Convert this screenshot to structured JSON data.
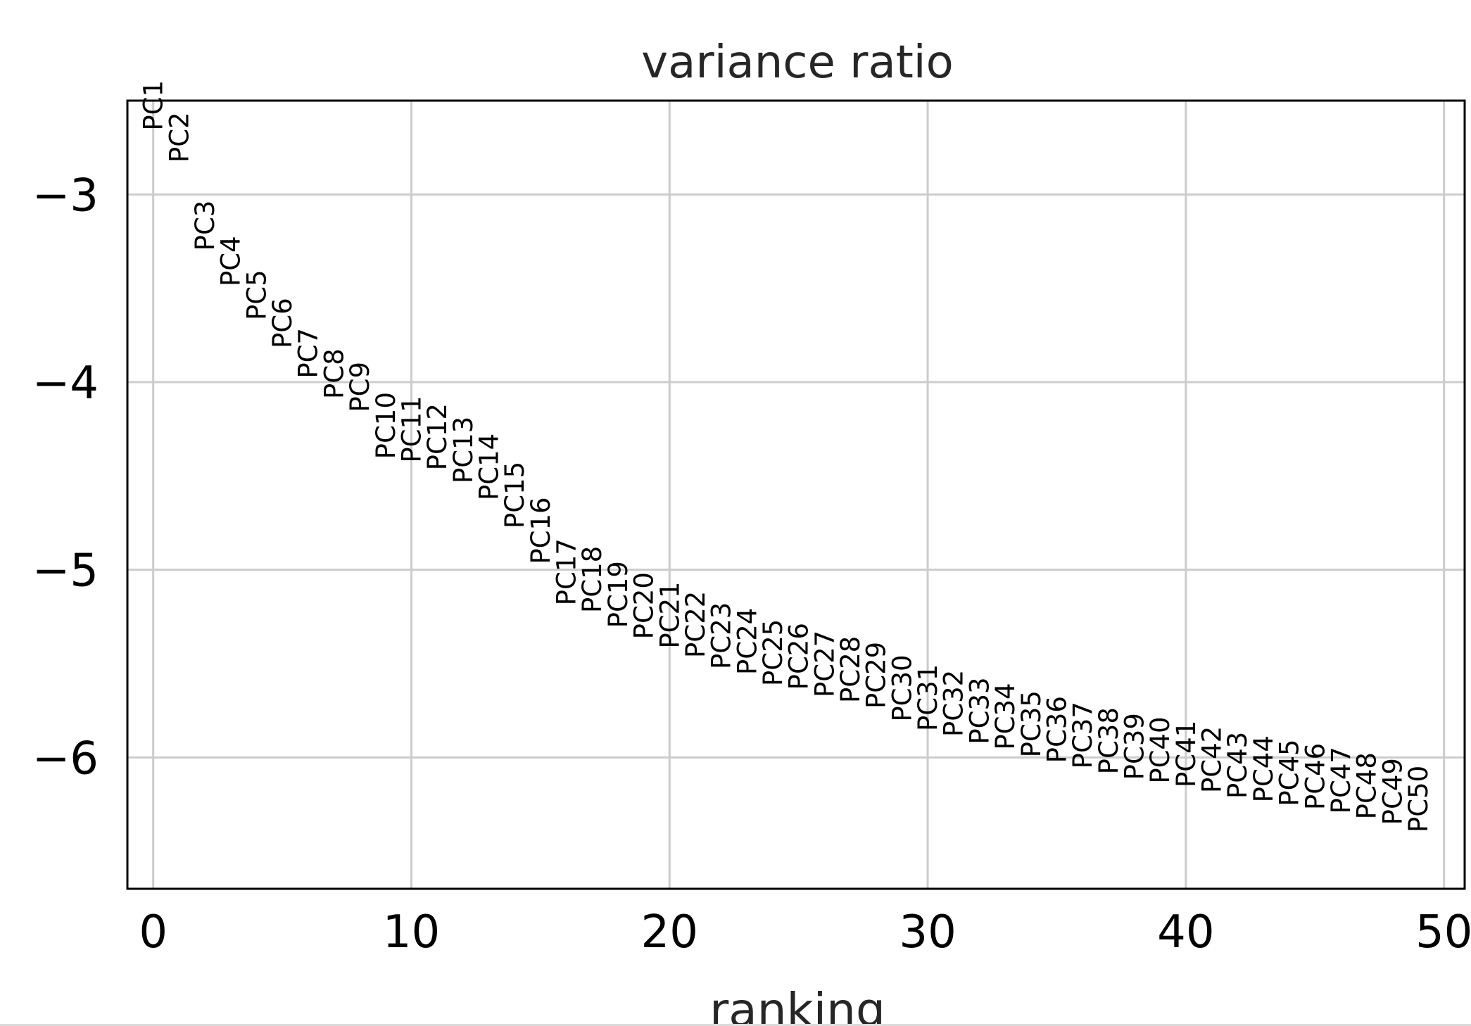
{
  "chart_data": {
    "type": "scatter",
    "title": "variance ratio",
    "xlabel": "ranking",
    "ylabel": "",
    "xlim": [
      -1,
      50.8
    ],
    "ylim": [
      -6.7,
      -2.5
    ],
    "x_ticks": [
      0,
      10,
      20,
      30,
      40,
      50
    ],
    "y_ticks": [
      -3,
      -4,
      -5,
      -6
    ],
    "x_tick_labels": [
      "0",
      "10",
      "20",
      "30",
      "40",
      "50"
    ],
    "y_tick_labels": [
      "−3",
      "−4",
      "−5",
      "−6"
    ],
    "grid": true,
    "point_labels": [
      "PC1",
      "PC2",
      "PC3",
      "PC4",
      "PC5",
      "PC6",
      "PC7",
      "PC8",
      "PC9",
      "PC10",
      "PC11",
      "PC12",
      "PC13",
      "PC14",
      "PC15",
      "PC16",
      "PC17",
      "PC18",
      "PC19",
      "PC20",
      "PC21",
      "PC22",
      "PC23",
      "PC24",
      "PC25",
      "PC26",
      "PC27",
      "PC28",
      "PC29",
      "PC30",
      "PC31",
      "PC32",
      "PC33",
      "PC34",
      "PC35",
      "PC36",
      "PC37",
      "PC38",
      "PC39",
      "PC40",
      "PC41",
      "PC42",
      "PC43",
      "PC44",
      "PC45",
      "PC46",
      "PC47",
      "PC48",
      "PC49",
      "PC50"
    ],
    "x": [
      0,
      1,
      2,
      3,
      4,
      5,
      6,
      7,
      8,
      9,
      10,
      11,
      12,
      13,
      14,
      15,
      16,
      17,
      18,
      19,
      20,
      21,
      22,
      23,
      24,
      25,
      26,
      27,
      28,
      29,
      30,
      31,
      32,
      33,
      34,
      35,
      36,
      37,
      38,
      39,
      40,
      41,
      42,
      43,
      44,
      45,
      46,
      47,
      48,
      49
    ],
    "y": [
      -2.66,
      -2.83,
      -3.3,
      -3.49,
      -3.67,
      -3.82,
      -3.98,
      -4.09,
      -4.16,
      -4.41,
      -4.43,
      -4.47,
      -4.54,
      -4.63,
      -4.78,
      -4.97,
      -5.19,
      -5.23,
      -5.31,
      -5.37,
      -5.42,
      -5.47,
      -5.53,
      -5.56,
      -5.62,
      -5.64,
      -5.68,
      -5.71,
      -5.74,
      -5.81,
      -5.86,
      -5.89,
      -5.93,
      -5.96,
      -6.0,
      -6.03,
      -6.06,
      -6.09,
      -6.12,
      -6.14,
      -6.16,
      -6.19,
      -6.22,
      -6.24,
      -6.26,
      -6.28,
      -6.3,
      -6.33,
      -6.36,
      -6.4
    ]
  }
}
